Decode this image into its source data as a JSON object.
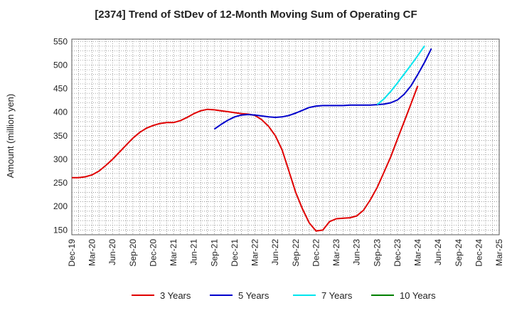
{
  "chart_data": {
    "type": "line",
    "title": "[2374]  Trend of StDev of 12-Month Moving Sum of Operating CF",
    "ylabel": "Amount (million yen)",
    "xlabel": "",
    "ylim": [
      140,
      555
    ],
    "yticks": [
      150,
      200,
      250,
      300,
      350,
      400,
      450,
      500,
      550
    ],
    "xticks": [
      "Dec-19",
      "Mar-20",
      "Jun-20",
      "Sep-20",
      "Dec-20",
      "Mar-21",
      "Jun-21",
      "Sep-21",
      "Dec-21",
      "Mar-22",
      "Jun-22",
      "Sep-22",
      "Dec-22",
      "Mar-23",
      "Jun-23",
      "Sep-23",
      "Dec-23",
      "Mar-24",
      "Jun-24",
      "Sep-24",
      "Dec-24",
      "Mar-25"
    ],
    "grid": true,
    "legend_position": "bottom",
    "series": [
      {
        "name": "3 Years",
        "color": "#e00000",
        "start_month": 0,
        "values": [
          261,
          261,
          263,
          267,
          275,
          287,
          300,
          315,
          330,
          345,
          357,
          366,
          372,
          376,
          378,
          378,
          382,
          389,
          397,
          403,
          406,
          405,
          403,
          401,
          399,
          397,
          396,
          393,
          384,
          370,
          350,
          320,
          275,
          230,
          195,
          165,
          148,
          150,
          168,
          174,
          175,
          176,
          180,
          192,
          214,
          240,
          272,
          305,
          343,
          380,
          418,
          456
        ]
      },
      {
        "name": "5 Years",
        "color": "#0000cc",
        "start_month": 21,
        "values": [
          364,
          374,
          383,
          390,
          394,
          395,
          394,
          392,
          390,
          389,
          390,
          393,
          398,
          404,
          410,
          413,
          414,
          414,
          414,
          414,
          415,
          415,
          415,
          415,
          416,
          417,
          420,
          426,
          438,
          456,
          480,
          506,
          535
        ]
      },
      {
        "name": "7 Years",
        "color": "#00e5ee",
        "start_month": 45,
        "values": [
          416,
          428,
          444,
          462,
          481,
          500,
          520,
          541
        ]
      },
      {
        "name": "10 Years",
        "color": "#008000",
        "start_month": null,
        "values": []
      }
    ]
  }
}
